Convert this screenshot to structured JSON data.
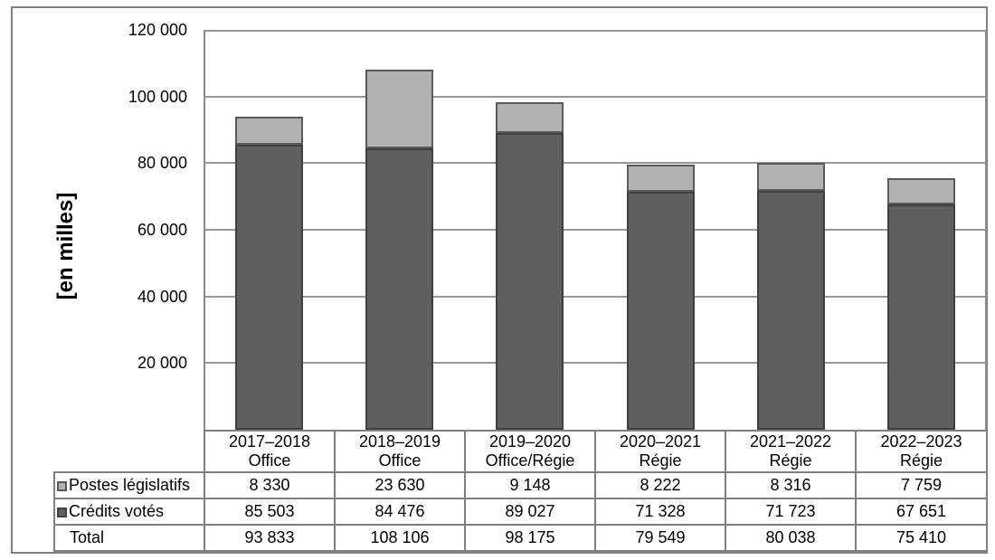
{
  "chart_data": {
    "type": "bar",
    "stacked": true,
    "title": "",
    "xlabel": "",
    "ylabel": "[en milles]",
    "ylim": [
      0,
      120000
    ],
    "ytick_step": 20000,
    "ytick_labels": [
      "20 000",
      "40 000",
      "60 000",
      "80 000",
      "100 000",
      "120 000"
    ],
    "grid": true,
    "legend_position": "table-left",
    "categories": [
      {
        "line1": "2017–2018",
        "line2": "Office"
      },
      {
        "line1": "2018–2019",
        "line2": "Office"
      },
      {
        "line1": "2019–2020",
        "line2": "Office/Régie"
      },
      {
        "line1": "2020–2021",
        "line2": "Régie"
      },
      {
        "line1": "2021–2022",
        "line2": "Régie"
      },
      {
        "line1": "2022–2023",
        "line2": "Régie"
      }
    ],
    "series": [
      {
        "name": "Postes législatifs",
        "stack_role": "top",
        "fill": "#b2b2b2",
        "border": "#595959",
        "values": [
          8330,
          23630,
          9148,
          8222,
          8316,
          7759
        ],
        "labels": [
          "8 330",
          "23 630",
          "9 148",
          "8 222",
          "8 316",
          "7 759"
        ]
      },
      {
        "name": "Crédits votés",
        "stack_role": "bottom",
        "fill": "#5f5f5f",
        "border": "#404040",
        "values": [
          85503,
          84476,
          89027,
          71328,
          71723,
          67651
        ],
        "labels": [
          "85 503",
          "84 476",
          "89 027",
          "71 328",
          "71 723",
          "67 651"
        ]
      }
    ],
    "total_row": {
      "label": "Total",
      "values": [
        93833,
        108106,
        98175,
        79549,
        80038,
        75410
      ],
      "labels": [
        "93 833",
        "108 106",
        "98 175",
        "79 549",
        "80 038",
        "75 410"
      ]
    }
  },
  "colors": {
    "postes_legislatifs": "#b2b2b2",
    "credits_votes": "#5f5f5f",
    "gridline": "#979797",
    "table_border": "#808080",
    "frame_border": "#7f7f7f",
    "text": "#000000"
  }
}
